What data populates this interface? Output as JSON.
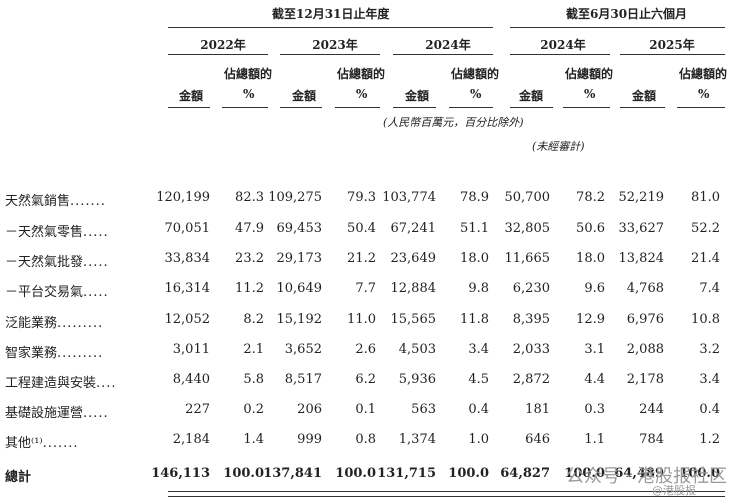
{
  "header": {
    "group_full_year": "截至12月31日止年度",
    "group_six_months": "截至6月30日止六個月",
    "years": [
      "2022年",
      "2023年",
      "2024年",
      "2024年",
      "2025年"
    ],
    "amount_label": "金額",
    "share_label_line1": "佔總額的",
    "share_label_line2": "%",
    "unit_note": "(人民幣百萬元，百分比除外)",
    "unaudited_note": "(未經審計)"
  },
  "rows": [
    {
      "label": "天然氣銷售",
      "values": [
        "120,199",
        "82.3",
        "109,275",
        "79.3",
        "103,774",
        "78.9",
        "50,700",
        "78.2",
        "52,219",
        "81.0"
      ]
    },
    {
      "label": "－天然氣零售",
      "values": [
        "70,051",
        "47.9",
        "69,453",
        "50.4",
        "67,241",
        "51.1",
        "32,805",
        "50.6",
        "33,627",
        "52.2"
      ]
    },
    {
      "label": "－天然氣批發",
      "values": [
        "33,834",
        "23.2",
        "29,173",
        "21.2",
        "23,649",
        "18.0",
        "11,665",
        "18.0",
        "13,824",
        "21.4"
      ]
    },
    {
      "label": "－平台交易氣",
      "values": [
        "16,314",
        "11.2",
        "10,649",
        "7.7",
        "12,884",
        "9.8",
        "6,230",
        "9.6",
        "4,768",
        "7.4"
      ]
    },
    {
      "label": "泛能業務",
      "values": [
        "12,052",
        "8.2",
        "15,192",
        "11.0",
        "15,565",
        "11.8",
        "8,395",
        "12.9",
        "6,976",
        "10.8"
      ]
    },
    {
      "label": "智家業務",
      "values": [
        "3,011",
        "2.1",
        "3,652",
        "2.6",
        "4,503",
        "3.4",
        "2,033",
        "3.1",
        "2,088",
        "3.2"
      ]
    },
    {
      "label": "工程建造與安裝",
      "values": [
        "8,440",
        "5.8",
        "8,517",
        "6.2",
        "5,936",
        "4.5",
        "2,872",
        "4.4",
        "2,178",
        "3.4"
      ]
    },
    {
      "label": "基礎設施運營",
      "values": [
        "227",
        "0.2",
        "206",
        "0.1",
        "563",
        "0.4",
        "181",
        "0.3",
        "244",
        "0.4"
      ]
    },
    {
      "label": "其他⁽¹⁾",
      "values": [
        "2,184",
        "1.4",
        "999",
        "0.8",
        "1,374",
        "1.0",
        "646",
        "1.1",
        "784",
        "1.2"
      ]
    }
  ],
  "total": {
    "label": "總計",
    "values": [
      "146,113",
      "100.0",
      "137,841",
      "100.0",
      "131,715",
      "100.0",
      "64,827",
      "100.0",
      "64,489",
      "100.0"
    ]
  },
  "watermark": {
    "text1": "公众号 · 港股报社区",
    "text2": "@港股报"
  }
}
